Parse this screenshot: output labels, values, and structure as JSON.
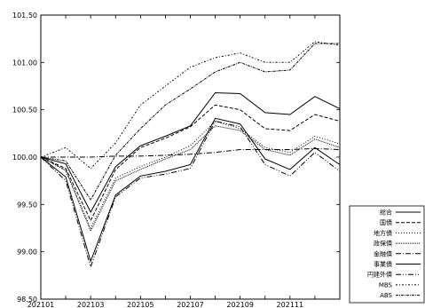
{
  "chart_data": {
    "type": "line",
    "title": "",
    "xlabel": "",
    "ylabel": "",
    "ylim": [
      98.5,
      101.5
    ],
    "yticks": [
      "101.50",
      "101.00",
      "100.50",
      "100.00",
      "99.50",
      "99.00",
      "98.50"
    ],
    "x": [
      "202101",
      "202102",
      "202103",
      "202104",
      "202105",
      "202106",
      "202107",
      "202108",
      "202109",
      "202110",
      "202111",
      "202112",
      "202201"
    ],
    "xtick_labels": [
      "202101",
      "202103",
      "202105",
      "202107",
      "202109",
      "202111"
    ],
    "grid": false,
    "legend_position": "bottom-right",
    "series": [
      {
        "name": "総合",
        "dash": "solid",
        "values": [
          100.0,
          99.93,
          99.42,
          99.9,
          100.12,
          100.22,
          100.33,
          100.68,
          100.67,
          100.47,
          100.45,
          100.64,
          100.51
        ]
      },
      {
        "name": "国債",
        "dash": "dash",
        "values": [
          100.0,
          99.88,
          99.33,
          99.87,
          100.1,
          100.2,
          100.32,
          100.55,
          100.5,
          100.3,
          100.28,
          100.45,
          100.38
        ]
      },
      {
        "name": "地方債",
        "dash": "dot",
        "values": [
          100.0,
          99.86,
          99.25,
          99.78,
          99.9,
          100.0,
          100.12,
          100.38,
          100.3,
          100.1,
          100.05,
          100.22,
          100.14
        ]
      },
      {
        "name": "政保債",
        "dash": "dot-fine",
        "values": [
          100.0,
          99.86,
          99.22,
          99.75,
          99.87,
          99.98,
          100.08,
          100.33,
          100.28,
          100.08,
          100.02,
          100.19,
          100.1
        ]
      },
      {
        "name": "金融債",
        "dash": "dashdot",
        "values": [
          100.0,
          100.0,
          100.0,
          100.01,
          100.01,
          100.02,
          100.03,
          100.05,
          100.08,
          100.08,
          100.08,
          100.09,
          100.08
        ]
      },
      {
        "name": "事業債",
        "dash": "solid",
        "values": [
          100.0,
          99.79,
          98.9,
          99.6,
          99.8,
          99.85,
          99.92,
          100.41,
          100.35,
          99.98,
          99.87,
          100.1,
          99.92
        ]
      },
      {
        "name": "円建外債",
        "dash": "dashdotdot",
        "values": [
          100.0,
          99.75,
          98.84,
          99.58,
          99.78,
          99.82,
          99.88,
          100.38,
          100.32,
          99.92,
          99.8,
          100.05,
          99.85
        ]
      },
      {
        "name": "MBS",
        "dash": "dash-dot-dot",
        "values": [
          100.0,
          100.1,
          99.88,
          100.15,
          100.55,
          100.75,
          100.95,
          101.05,
          101.1,
          101.0,
          101.0,
          101.22,
          101.18
        ]
      },
      {
        "name": "ABS",
        "dash": "dash-double",
        "values": [
          100.0,
          99.96,
          99.55,
          100.02,
          100.3,
          100.55,
          100.72,
          100.9,
          101.0,
          100.9,
          100.92,
          101.2,
          101.2
        ]
      }
    ]
  }
}
